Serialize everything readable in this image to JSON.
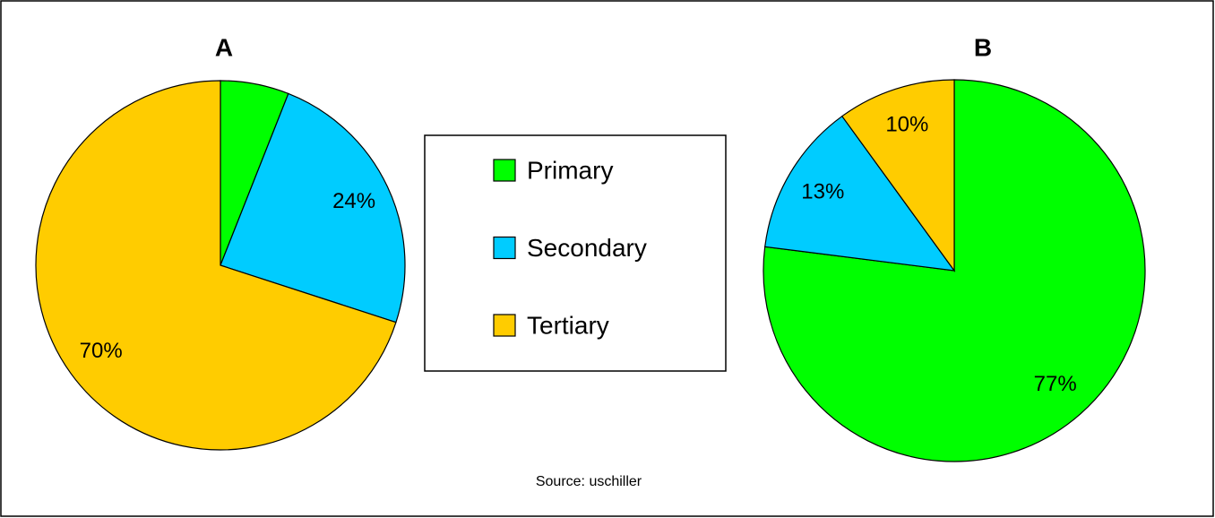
{
  "chart_data": [
    {
      "type": "pie",
      "title": "A",
      "categories": [
        "Primary",
        "Secondary",
        "Tertiary"
      ],
      "values": [
        6,
        24,
        70
      ],
      "value_labels": [
        null,
        "24%",
        "70%"
      ],
      "colors": [
        "#00ff00",
        "#00ccff",
        "#ffcc00"
      ]
    },
    {
      "type": "pie",
      "title": "B",
      "categories": [
        "Primary",
        "Secondary",
        "Tertiary"
      ],
      "values": [
        77,
        13,
        10
      ],
      "value_labels": [
        "77%",
        "13%",
        "10%"
      ],
      "colors": [
        "#00ff00",
        "#00ccff",
        "#ffcc00"
      ]
    }
  ],
  "source": "Source: uschiller"
}
